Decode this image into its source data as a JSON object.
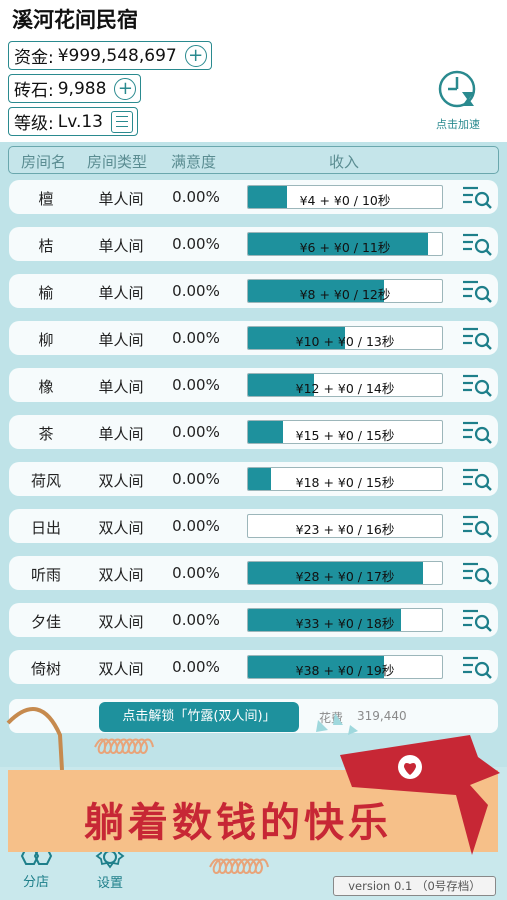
{
  "app": {
    "title": "溪河花间民宿"
  },
  "stats": {
    "funds_label": "资金:",
    "funds_value": "¥999,548,697",
    "bricks_label": "砖石:",
    "bricks_value": "9,988",
    "level_label": "等级:",
    "level_value": "Lv.13"
  },
  "speed_up": {
    "label": "点击加速"
  },
  "table": {
    "headers": [
      "房间名",
      "房间类型",
      "满意度",
      "收入"
    ],
    "rows": [
      {
        "name": "檀",
        "type": "单人间",
        "satisfaction": "0.00%",
        "income": "¥4 + ¥0 / 10秒",
        "progress": 0.2
      },
      {
        "name": "桔",
        "type": "单人间",
        "satisfaction": "0.00%",
        "income": "¥6 + ¥0 / 11秒",
        "progress": 0.93
      },
      {
        "name": "榆",
        "type": "单人间",
        "satisfaction": "0.00%",
        "income": "¥8 + ¥0 / 12秒",
        "progress": 0.7
      },
      {
        "name": "柳",
        "type": "单人间",
        "satisfaction": "0.00%",
        "income": "¥10 + ¥0 / 13秒",
        "progress": 0.5
      },
      {
        "name": "橡",
        "type": "单人间",
        "satisfaction": "0.00%",
        "income": "¥12 + ¥0 / 14秒",
        "progress": 0.34
      },
      {
        "name": "茶",
        "type": "单人间",
        "satisfaction": "0.00%",
        "income": "¥15 + ¥0 / 15秒",
        "progress": 0.18
      },
      {
        "name": "荷风",
        "type": "双人间",
        "satisfaction": "0.00%",
        "income": "¥18 + ¥0 / 15秒",
        "progress": 0.12
      },
      {
        "name": "日出",
        "type": "双人间",
        "satisfaction": "0.00%",
        "income": "¥23 + ¥0 / 16秒",
        "progress": 0.0
      },
      {
        "name": "听雨",
        "type": "双人间",
        "satisfaction": "0.00%",
        "income": "¥28 + ¥0 / 17秒",
        "progress": 0.9
      },
      {
        "name": "夕佳",
        "type": "双人间",
        "satisfaction": "0.00%",
        "income": "¥33 + ¥0 / 18秒",
        "progress": 0.79
      },
      {
        "name": "倚树",
        "type": "双人间",
        "satisfaction": "0.00%",
        "income": "¥38 + ¥0 / 19秒",
        "progress": 0.7
      }
    ]
  },
  "unlock": {
    "button_label": "点击解锁「竹露(双人间)」",
    "cost_label": "花费",
    "cost_value": "319,440"
  },
  "nav": {
    "tabs": [
      {
        "label": "分店",
        "icon": "hexagon-shop-icon"
      },
      {
        "label": "设置",
        "icon": "gear-icon"
      }
    ]
  },
  "version": "version 0.1 （0号存档）",
  "banner": {
    "text": "躺着数钱的快乐"
  },
  "colors": {
    "accent": "#1e919d",
    "panel": "#bfe3e8",
    "banner_red": "#c72735",
    "banner_bg": "#f6c089"
  }
}
